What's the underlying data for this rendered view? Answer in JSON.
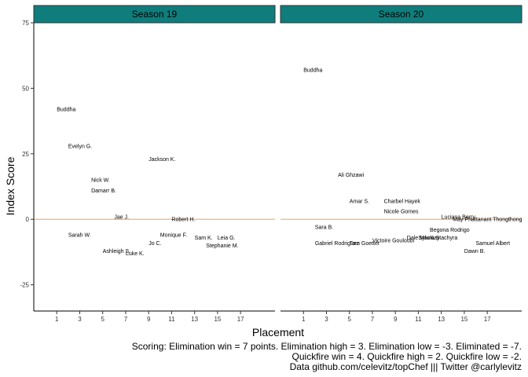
{
  "chart_data": {
    "type": "scatter",
    "facets": [
      "Season 19",
      "Season 20"
    ],
    "xlabel": "Placement",
    "ylabel": "Index Score",
    "x_ticks": [
      1,
      3,
      5,
      7,
      9,
      11,
      13,
      15,
      17
    ],
    "xlim": [
      -1,
      20
    ],
    "y_ticks": [
      -25,
      0,
      25,
      50,
      75
    ],
    "ylim": [
      -35,
      75
    ],
    "reference_line": {
      "y": 0,
      "color": "#f6b27a"
    },
    "strip_color": "#0f7d7c",
    "point_label_size": "small",
    "caption": [
      "Scoring: Elimination win = 7 points. Elimination high = 3. Elimination low = -3. Eliminated = -7.",
      "Quickfire win = 4. Quickfire high = 2. Quickfire low = -2.",
      "Data github.com/celevitz/topChef ||| Twitter @carlylevitz"
    ],
    "panels": [
      {
        "facet": "Season 19",
        "points": [
          {
            "name": "Buddha",
            "x": 1,
            "y": 42
          },
          {
            "name": "Evelyn G.",
            "x": 2,
            "y": 28
          },
          {
            "name": "Nick W.",
            "x": 4,
            "y": 15
          },
          {
            "name": "Damarr B.",
            "x": 4,
            "y": 11
          },
          {
            "name": "Sarah W.",
            "x": 2,
            "y": -6
          },
          {
            "name": "Jae J.",
            "x": 6,
            "y": 1
          },
          {
            "name": "Ashleigh S.",
            "x": 5,
            "y": -12
          },
          {
            "name": "Luke K.",
            "x": 7,
            "y": -13
          },
          {
            "name": "Jackson K.",
            "x": 9,
            "y": 23
          },
          {
            "name": "Monique F.",
            "x": 10,
            "y": -6
          },
          {
            "name": "Jo C.",
            "x": 9,
            "y": -9
          },
          {
            "name": "Robert H.",
            "x": 11,
            "y": 0
          },
          {
            "name": "Sam K.",
            "x": 13,
            "y": -7
          },
          {
            "name": "Leia G.",
            "x": 15,
            "y": -7
          },
          {
            "name": "Stephanie M.",
            "x": 14,
            "y": -10
          }
        ]
      },
      {
        "facet": "Season 20",
        "points": [
          {
            "name": "Buddha",
            "x": 1,
            "y": 57
          },
          {
            "name": "Ali Ghzawi",
            "x": 4,
            "y": 17
          },
          {
            "name": "Amar S.",
            "x": 5,
            "y": 7
          },
          {
            "name": "Charbel Hayek",
            "x": 8,
            "y": 7
          },
          {
            "name": "Nicole Gomes",
            "x": 8,
            "y": 3
          },
          {
            "name": "Sara B.",
            "x": 2,
            "y": -3
          },
          {
            "name": "Gabriel Rodriguez",
            "x": 2,
            "y": -9
          },
          {
            "name": "Tom Goetter",
            "x": 5,
            "y": -9
          },
          {
            "name": "Victoire Gouloubi",
            "x": 7,
            "y": -8
          },
          {
            "name": "Dale MacKay",
            "x": 10,
            "y": -7
          },
          {
            "name": "Sylwia Stachyra",
            "x": 11,
            "y": -7
          },
          {
            "name": "Begona Rodrigo",
            "x": 12,
            "y": -4
          },
          {
            "name": "Luciana Berry",
            "x": 13,
            "y": 1
          },
          {
            "name": "May Phattanant Thongthong",
            "x": 14,
            "y": 0
          },
          {
            "name": "Samuel Albert",
            "x": 16,
            "y": -9
          },
          {
            "name": "Dawn B.",
            "x": 15,
            "y": -12
          }
        ]
      }
    ]
  }
}
